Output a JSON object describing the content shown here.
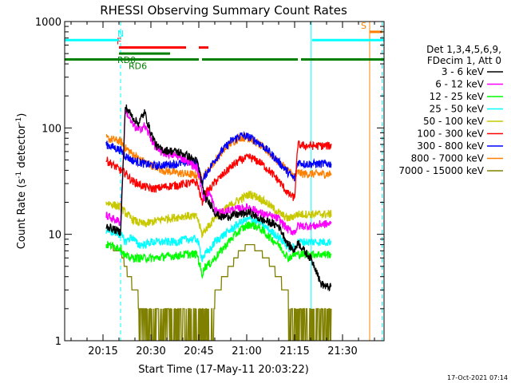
{
  "chart_data": {
    "type": "line",
    "title": "RHESSI Observing Summary Count Rates",
    "xlabel": "Start Time (17-May-11 20:03:22)",
    "ylabel_main": "Count Rate (s",
    "ylabel_sup1": "-1",
    "ylabel_mid": " detector",
    "ylabel_sup2": "-1",
    "ylabel_end": ")",
    "yscale": "log",
    "ylim": [
      1,
      1000
    ],
    "xlim_minutes": [
      0,
      100
    ],
    "x_ticks": [
      {
        "t": 12,
        "label": "20:15"
      },
      {
        "t": 27,
        "label": "20:30"
      },
      {
        "t": 42,
        "label": "20:45"
      },
      {
        "t": 57,
        "label": "21:00"
      },
      {
        "t": 72,
        "label": "21:15"
      },
      {
        "t": 87,
        "label": "21:30"
      }
    ],
    "y_ticks": [
      {
        "v": 1,
        "label": "1"
      },
      {
        "v": 10,
        "label": "10"
      },
      {
        "v": 100,
        "label": "100"
      },
      {
        "v": 1000,
        "label": "1000"
      }
    ],
    "legend_header": [
      "Det 1,3,4,5,6,9,",
      "FDecim 1, Att 0"
    ],
    "legend_position": "right",
    "footer_date": "17-Oct-2021 07:14",
    "data_start_t": 13,
    "data_end_t": 83.5,
    "knots_t": [
      13,
      17.5,
      19,
      21,
      23,
      25,
      27,
      29,
      31,
      35,
      38,
      41.5,
      43,
      44,
      45,
      46,
      47,
      49,
      52,
      55,
      58,
      61,
      64,
      67,
      70,
      72,
      73,
      75,
      77,
      79,
      80,
      82,
      83.5
    ],
    "series": [
      {
        "name": "3 - 6 keV",
        "color": "#000000",
        "values": [
          12,
          10.5,
          160,
          130,
          110,
          140,
          90,
          66,
          62,
          60,
          56,
          48,
          30,
          22,
          20,
          19,
          16,
          14.5,
          15,
          15.5,
          16,
          14,
          13,
          12,
          8,
          7,
          8.5,
          7,
          6,
          4.5,
          3.5,
          3.2,
          3.2
        ]
      },
      {
        "name": "6 - 12 keV",
        "color": "#ff00ff",
        "values": [
          15,
          13,
          150,
          110,
          95,
          105,
          80,
          62,
          58,
          55,
          50,
          42,
          26,
          21,
          25,
          22,
          17,
          16,
          17,
          17.5,
          18,
          16,
          15,
          14,
          11,
          10.5,
          12,
          12,
          12,
          12,
          12.5,
          12.5,
          12.5
        ]
      },
      {
        "name": "12 - 25 keV",
        "color": "#00ff00",
        "values": [
          8,
          7.5,
          6.2,
          6,
          6,
          6,
          6,
          6,
          6.2,
          6.3,
          6.5,
          6.5,
          4.2,
          5,
          5.2,
          5.5,
          6,
          7,
          9,
          11,
          12.5,
          11.5,
          9.5,
          8,
          6,
          6.5,
          6.5,
          6.5,
          6.5,
          6.5,
          6.5,
          6.5,
          6.5
        ]
      },
      {
        "name": "25 - 50 keV",
        "color": "#00ffff",
        "values": [
          11,
          10,
          8.5,
          9.5,
          8,
          8,
          8.5,
          8.5,
          8.5,
          8.5,
          9,
          9,
          6,
          6.5,
          7,
          7.5,
          8.5,
          9.5,
          11,
          13,
          14,
          13,
          11,
          9.5,
          7.5,
          7.5,
          8.5,
          8.5,
          8.5,
          8.5,
          8.5,
          8.5,
          8.5
        ]
      },
      {
        "name": "50 - 100 keV",
        "color": "#c8c800",
        "values": [
          20,
          18,
          16,
          14,
          13,
          12.5,
          13,
          13.5,
          14,
          14.5,
          15,
          14.5,
          10,
          11,
          12,
          13,
          14.5,
          16,
          19,
          21.5,
          24,
          22,
          19,
          16,
          14,
          15,
          15.5,
          15.5,
          15.5,
          15.5,
          15.5,
          15.5,
          15.5
        ]
      },
      {
        "name": "100 - 300 keV",
        "color": "#ff0000",
        "values": [
          50,
          40,
          38,
          32,
          30,
          28,
          27,
          27,
          28,
          29,
          30,
          31,
          20,
          24,
          26,
          28,
          31,
          35,
          43,
          50,
          53,
          48,
          40,
          32,
          24,
          22,
          70,
          68,
          68,
          68,
          68,
          68,
          68
        ]
      },
      {
        "name": "300 - 800 keV",
        "color": "#0000ff",
        "values": [
          70,
          62,
          55,
          50,
          48,
          46,
          45,
          44,
          45,
          46,
          47,
          48,
          30,
          36,
          40,
          45,
          50,
          60,
          75,
          85,
          82,
          72,
          60,
          48,
          38,
          33,
          48,
          46,
          46,
          46,
          46,
          46,
          46
        ]
      },
      {
        "name": "800 - 7000 keV",
        "color": "#ff8000",
        "values": [
          80,
          75,
          65,
          58,
          52,
          48,
          45,
          42,
          40,
          38,
          37,
          36,
          35,
          37,
          40,
          44,
          49,
          58,
          72,
          82,
          80,
          70,
          58,
          48,
          40,
          35,
          38,
          37,
          37,
          37,
          37,
          37,
          37
        ]
      },
      {
        "name": "7000 - 15000 keV",
        "color": "#808000",
        "values": [
          8,
          7,
          5,
          3.5,
          2.5,
          2.2,
          2,
          2,
          2,
          2,
          2,
          2,
          2,
          2,
          2,
          2,
          2.5,
          3.5,
          5,
          7,
          8,
          7,
          5.5,
          4,
          2.5,
          2,
          2,
          2,
          2,
          2,
          2,
          2,
          2
        ]
      }
    ],
    "attenuator_states": [
      {
        "label": "F",
        "color": "#ff0000",
        "level": 570,
        "segments": [
          [
            17,
            38
          ],
          [
            42,
            45
          ]
        ]
      },
      {
        "label": "RD0",
        "color": "#008000",
        "level": 500,
        "segments": [
          [
            17,
            33
          ]
        ]
      },
      {
        "label": "RD6",
        "color": "#008000",
        "level": 440,
        "segments": [
          [
            0,
            42
          ],
          [
            43,
            73
          ],
          [
            74,
            100
          ]
        ]
      },
      {
        "label": "N",
        "color": "#00ffff",
        "level": 670,
        "segments": [
          [
            0,
            17
          ],
          [
            77.5,
            100
          ]
        ]
      },
      {
        "label": "S",
        "color": "#ff8000",
        "level": 800,
        "segments": [
          [
            95.5,
            99.5
          ]
        ]
      }
    ],
    "vertical_markers": [
      {
        "t": 17.5,
        "color": "#00ffff",
        "style": "dashed"
      },
      {
        "t": 77.2,
        "color": "#00ffff",
        "style": "solid"
      },
      {
        "t": 95.5,
        "color": "#ff8000",
        "style": "solid"
      },
      {
        "t": 99.4,
        "color": "#00ffff",
        "style": "dashed"
      }
    ],
    "grid": false
  }
}
